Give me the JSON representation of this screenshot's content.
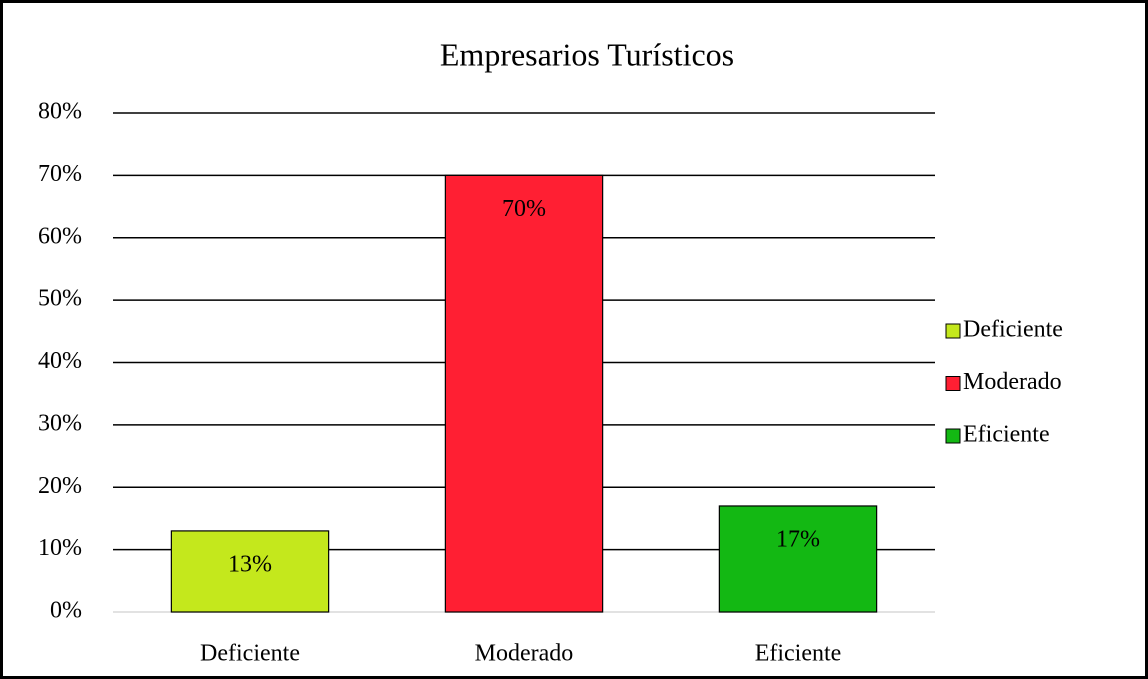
{
  "chart_data": {
    "type": "bar",
    "title": "Empresarios Turísticos",
    "categories": [
      "Deficiente",
      "Moderado",
      "Eficiente"
    ],
    "values": [
      13,
      70,
      17
    ],
    "value_labels": [
      "13%",
      "70%",
      "17%"
    ],
    "colors": [
      "#c4e81c",
      "#ff1f33",
      "#13b813"
    ],
    "ylim": [
      0,
      80
    ],
    "yticks": [
      {
        "value": 0,
        "label": "0%"
      },
      {
        "value": 10,
        "label": "10%"
      },
      {
        "value": 20,
        "label": "20%"
      },
      {
        "value": 30,
        "label": "30%"
      },
      {
        "value": 40,
        "label": "40%"
      },
      {
        "value": 50,
        "label": "50%"
      },
      {
        "value": 60,
        "label": "60%"
      },
      {
        "value": 70,
        "label": "70%"
      },
      {
        "value": 80,
        "label": "80%"
      }
    ],
    "grid": true,
    "legend": "right"
  }
}
